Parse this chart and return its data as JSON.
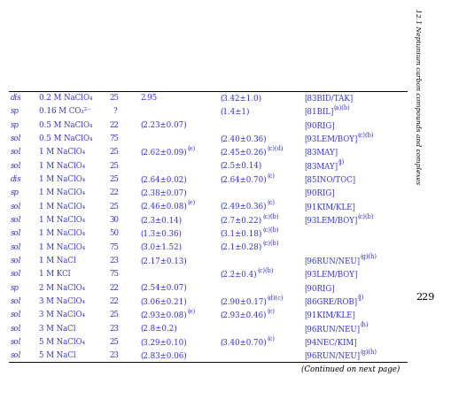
{
  "page_number": "229",
  "side_text": "12.1 Neptunium carbon compounds and complexes",
  "continued_text": "(Continued on next page)",
  "table_rows": [
    [
      "dis",
      "0.2 M NaClO₄",
      "25",
      "2.95",
      "(3.42±1.0)",
      "[83BID/TAK]",
      "",
      ""
    ],
    [
      "sp",
      "0.16 M CO₃²⁻",
      "?",
      "",
      "(1.4±1)",
      "[81BIL]",
      "(a)(b)",
      ""
    ],
    [
      "sp",
      "0.5 M NaClO₄",
      "22",
      "(2.23±0.07)",
      "",
      "[90RIG]",
      "",
      ""
    ],
    [
      "sol",
      "0.5 M NaClO₄",
      "75",
      "",
      "(2.40±0.36)",
      "[93LEM/BOY]",
      "(c)(b)",
      ""
    ],
    [
      "sol",
      "1 M NaClO₄",
      "25",
      "(2.62±0.09)",
      "(2.45±0.26)",
      "[83MAY]",
      "",
      "(c)(d)"
    ],
    [
      "sol",
      "1 M NaClO₄",
      "25",
      "",
      "(2.5±0.14)",
      "[83MAY]",
      "(j)",
      ""
    ],
    [
      "dis",
      "1 M NaClO₄",
      "25",
      "(2.64±0.02)",
      "(2.64±0.70)",
      "[85INO/TOC]",
      "",
      "(c)"
    ],
    [
      "sp",
      "1 M NaClO₄",
      "22",
      "(2.38±0.07)",
      "",
      "[90RIG]",
      "",
      ""
    ],
    [
      "sol",
      "1 M NaClO₄",
      "25",
      "(2.46±0.08)",
      "(2.49±0.36)",
      "[91KIM/KLE]",
      "",
      "(c)"
    ],
    [
      "sol",
      "1 M NaClO₄",
      "30",
      "(2.3±0.14)",
      "(2.7±0.22)",
      "[93LEM/BOY]",
      "(c)(b)",
      "(c)(b)"
    ],
    [
      "sol",
      "1 M NaClO₄",
      "50",
      "(1.3±0.36)",
      "(3.1±0.18)",
      "",
      "",
      "(c)(b)"
    ],
    [
      "sol",
      "1 M NaClO₄",
      "75",
      "(3.0±1.52)",
      "(2.1±0.28)",
      "",
      "",
      "(c)(b)"
    ],
    [
      "sol",
      "1 M NaCl",
      "23",
      "(2.17±0.13)",
      "",
      "[96RUN/NEU]",
      "(g)(h)",
      ""
    ],
    [
      "sol",
      "1 M KCl",
      "75",
      "",
      "(2.2±0.4)",
      "[93LEM/BOY]",
      "",
      "(c)(b)"
    ],
    [
      "sp",
      "2 M NaClO₄",
      "22",
      "(2.54±0.07)",
      "",
      "[90RIG]",
      "",
      ""
    ],
    [
      "sol",
      "3 M NaClO₄",
      "22",
      "(3.06±0.21)",
      "(2.90±0.17)",
      "[86GRE/ROB]",
      "(j)",
      "(d)(c)"
    ],
    [
      "sol",
      "3 M NaClO₄",
      "25",
      "(2.93±0.08)",
      "(2.93±0.46)",
      "[91KIM/KLE]",
      "",
      "(c)"
    ],
    [
      "sol",
      "3 M NaCl",
      "23",
      "(2.8±0.2)",
      "",
      "[96RUN/NEU]",
      "(h)",
      ""
    ],
    [
      "sol",
      "5 M NaClO₄",
      "25",
      "(3.29±0.10)",
      "(3.40±0.70)",
      "[94NEC/KIM]",
      "",
      "(c)"
    ],
    [
      "sol",
      "5 M NaCl",
      "23",
      "(2.83±0.06)",
      "",
      "[96RUN/NEU]",
      "(g)(h)",
      ""
    ]
  ],
  "col3_sup": [
    "",
    "",
    "",
    "",
    "(e)",
    "",
    "",
    "",
    "(e)",
    "",
    "",
    "",
    "",
    "",
    "",
    "",
    "(e)",
    "",
    "",
    ""
  ],
  "text_color": "#3333cc",
  "bg_color": "#ffffff",
  "line_color": "#000000",
  "font_size": 6.2,
  "sup_font_size": 4.8
}
